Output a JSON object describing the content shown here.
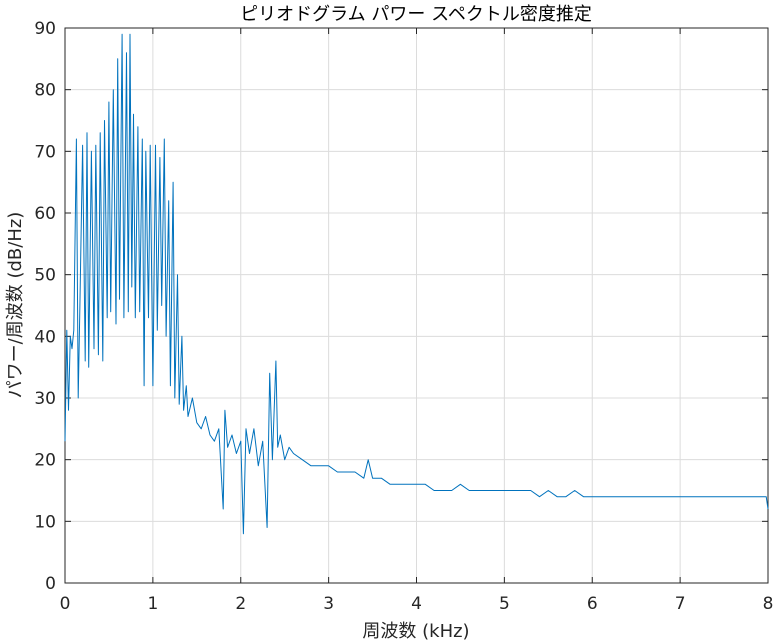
{
  "chart_data": {
    "type": "line",
    "title": "ピリオドグラム パワー スペクトル密度推定",
    "xlabel": "周波数 (kHz)",
    "ylabel": "パワー/周波数 (dB/Hz)",
    "xlim": [
      0,
      8
    ],
    "ylim": [
      0,
      90
    ],
    "xticks": [
      "0",
      "1",
      "2",
      "3",
      "4",
      "5",
      "6",
      "7",
      "8"
    ],
    "yticks": [
      "0",
      "10",
      "20",
      "30",
      "40",
      "50",
      "60",
      "70",
      "80",
      "90"
    ],
    "grid": true,
    "series": [
      {
        "color": "#0072bd",
        "x": [
          0.0,
          0.02,
          0.04,
          0.06,
          0.08,
          0.1,
          0.13,
          0.15,
          0.17,
          0.2,
          0.23,
          0.25,
          0.27,
          0.3,
          0.33,
          0.35,
          0.38,
          0.4,
          0.43,
          0.45,
          0.48,
          0.5,
          0.52,
          0.55,
          0.58,
          0.6,
          0.62,
          0.65,
          0.67,
          0.7,
          0.72,
          0.74,
          0.76,
          0.78,
          0.8,
          0.83,
          0.85,
          0.88,
          0.9,
          0.92,
          0.95,
          0.97,
          1.0,
          1.03,
          1.05,
          1.08,
          1.1,
          1.13,
          1.15,
          1.18,
          1.2,
          1.23,
          1.25,
          1.28,
          1.3,
          1.33,
          1.35,
          1.38,
          1.4,
          1.45,
          1.5,
          1.55,
          1.6,
          1.65,
          1.7,
          1.75,
          1.8,
          1.82,
          1.85,
          1.9,
          1.95,
          2.0,
          2.03,
          2.06,
          2.1,
          2.15,
          2.2,
          2.25,
          2.3,
          2.33,
          2.36,
          2.4,
          2.42,
          2.45,
          2.5,
          2.55,
          2.6,
          2.7,
          2.8,
          2.9,
          3.0,
          3.1,
          3.2,
          3.3,
          3.4,
          3.45,
          3.5,
          3.6,
          3.7,
          3.8,
          3.9,
          4.0,
          4.1,
          4.2,
          4.3,
          4.4,
          4.5,
          4.6,
          4.7,
          4.8,
          4.9,
          5.0,
          5.1,
          5.2,
          5.3,
          5.4,
          5.5,
          5.6,
          5.7,
          5.8,
          5.9,
          6.0,
          6.1,
          6.2,
          6.4,
          6.6,
          6.8,
          7.0,
          7.2,
          7.4,
          7.6,
          7.8,
          7.98,
          8.0
        ],
        "y": [
          23,
          41,
          28,
          40,
          38,
          41,
          72,
          30,
          45,
          71,
          36,
          73,
          35,
          70,
          38,
          71,
          37,
          73,
          36,
          75,
          43,
          78,
          44,
          80,
          42,
          85,
          46,
          89,
          43,
          86,
          44,
          89,
          48,
          76,
          43,
          74,
          44,
          72,
          32,
          70,
          43,
          71,
          32,
          71,
          41,
          69,
          45,
          72,
          40,
          62,
          32,
          65,
          30,
          50,
          29,
          40,
          28,
          32,
          27,
          30,
          26,
          25,
          27,
          24,
          23,
          25,
          12,
          28,
          22,
          24,
          21,
          23,
          8,
          25,
          21,
          25,
          19,
          23,
          9,
          34,
          20,
          36,
          22,
          24,
          20,
          22,
          21,
          20,
          19,
          19,
          19,
          18,
          18,
          18,
          17,
          20,
          17,
          17,
          16,
          16,
          16,
          16,
          16,
          15,
          15,
          15,
          16,
          15,
          15,
          15,
          15,
          15,
          15,
          15,
          15,
          14,
          15,
          14,
          14,
          15,
          14,
          14,
          14,
          14,
          14,
          14,
          14,
          14,
          14,
          14,
          14,
          14,
          14,
          12
        ]
      }
    ]
  }
}
